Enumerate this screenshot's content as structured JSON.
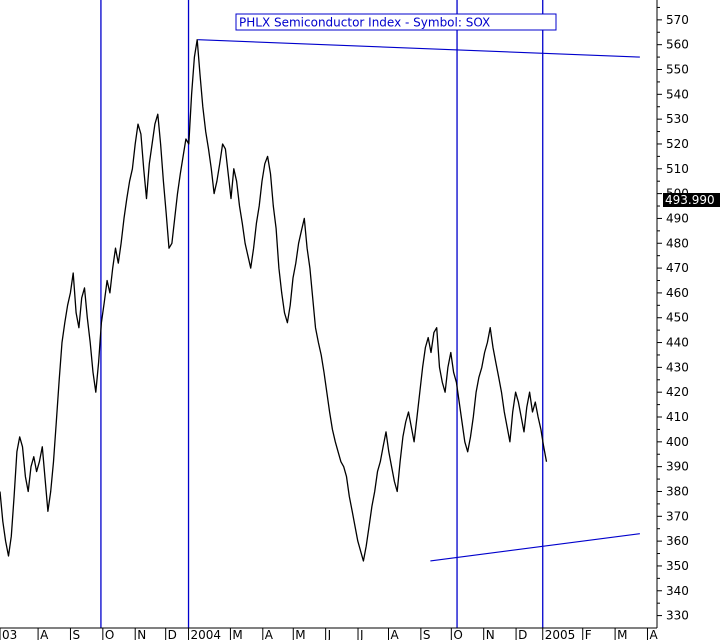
{
  "chart_data": {
    "type": "line",
    "title": "PHLX Semiconductor Index - Symbol: SOX",
    "xlabel": "",
    "ylabel": "",
    "ylim": [
      325,
      578
    ],
    "y_ticks": [
      330,
      340,
      350,
      360,
      370,
      380,
      390,
      400,
      410,
      420,
      430,
      440,
      450,
      460,
      470,
      480,
      490,
      500,
      510,
      520,
      530,
      540,
      550,
      560,
      570
    ],
    "last_value_label": "493.990",
    "x_index_range": [
      0,
      287
    ],
    "x_ticks": [
      {
        "i": 0,
        "label": "03"
      },
      {
        "i": 20,
        "label": "A"
      },
      {
        "i": 37,
        "label": "S"
      },
      {
        "i": 54,
        "label": "O"
      },
      {
        "i": 71,
        "label": "N"
      },
      {
        "i": 87,
        "label": "D"
      },
      {
        "i": 99,
        "label": "2004"
      },
      {
        "i": 121,
        "label": "M"
      },
      {
        "i": 138,
        "label": "A"
      },
      {
        "i": 154,
        "label": "M"
      },
      {
        "i": 171,
        "label": "J"
      },
      {
        "i": 188,
        "label": "J"
      },
      {
        "i": 204,
        "label": "A"
      },
      {
        "i": 221,
        "label": "S"
      },
      {
        "i": 237,
        "label": "O"
      },
      {
        "i": 254,
        "label": "N"
      },
      {
        "i": 271,
        "label": "D"
      },
      {
        "i": 285,
        "label": "2005"
      },
      {
        "i": 306,
        "label": "F"
      },
      {
        "i": 323,
        "label": "M"
      },
      {
        "i": 340,
        "label": "A"
      }
    ],
    "vertical_lines_x_index": [
      53,
      99,
      240,
      285
    ],
    "trendlines": [
      {
        "from": [
          104,
          562
        ],
        "to": [
          336,
          555
        ]
      },
      {
        "from": [
          226,
          352
        ],
        "to": [
          336,
          363
        ]
      }
    ],
    "series": [
      {
        "values": [
          380,
          368,
          360,
          354,
          362,
          378,
          396,
          402,
          398,
          386,
          380,
          390,
          394,
          388,
          392,
          398,
          385,
          372,
          380,
          392,
          408,
          425,
          440,
          448,
          455,
          460,
          468,
          452,
          446,
          458,
          462,
          450,
          440,
          428,
          420,
          432,
          448,
          456,
          465,
          460,
          470,
          478,
          472,
          480,
          490,
          498,
          505,
          510,
          520,
          528,
          524,
          510,
          498,
          512,
          520,
          528,
          532,
          520,
          505,
          492,
          478,
          480,
          490,
          500,
          508,
          515,
          522,
          520,
          540,
          555,
          562,
          548,
          535,
          525,
          518,
          510,
          500,
          505,
          512,
          520,
          518,
          508,
          498,
          510,
          505,
          495,
          488,
          480,
          475,
          470,
          478,
          488,
          495,
          505,
          512,
          515,
          508,
          495,
          486,
          470,
          460,
          452,
          448,
          455,
          466,
          472,
          480,
          485,
          490,
          478,
          470,
          458,
          446,
          440,
          435,
          428,
          420,
          412,
          405,
          400,
          396,
          392,
          390,
          386,
          378,
          372,
          366,
          360,
          356,
          352,
          358,
          366,
          374,
          380,
          388,
          392,
          398,
          404,
          396,
          390,
          384,
          380,
          392,
          402,
          408,
          412,
          406,
          400,
          410,
          420,
          430,
          438,
          442,
          436,
          444,
          446,
          430,
          424,
          420,
          430,
          436,
          428,
          424,
          416,
          408,
          400,
          396,
          402,
          410,
          420,
          426,
          430,
          436,
          440,
          446,
          438,
          432,
          426,
          420,
          412,
          406,
          400,
          412,
          420,
          416,
          410,
          404,
          414,
          420,
          412,
          416,
          410,
          405,
          398,
          392
        ]
      }
    ]
  }
}
